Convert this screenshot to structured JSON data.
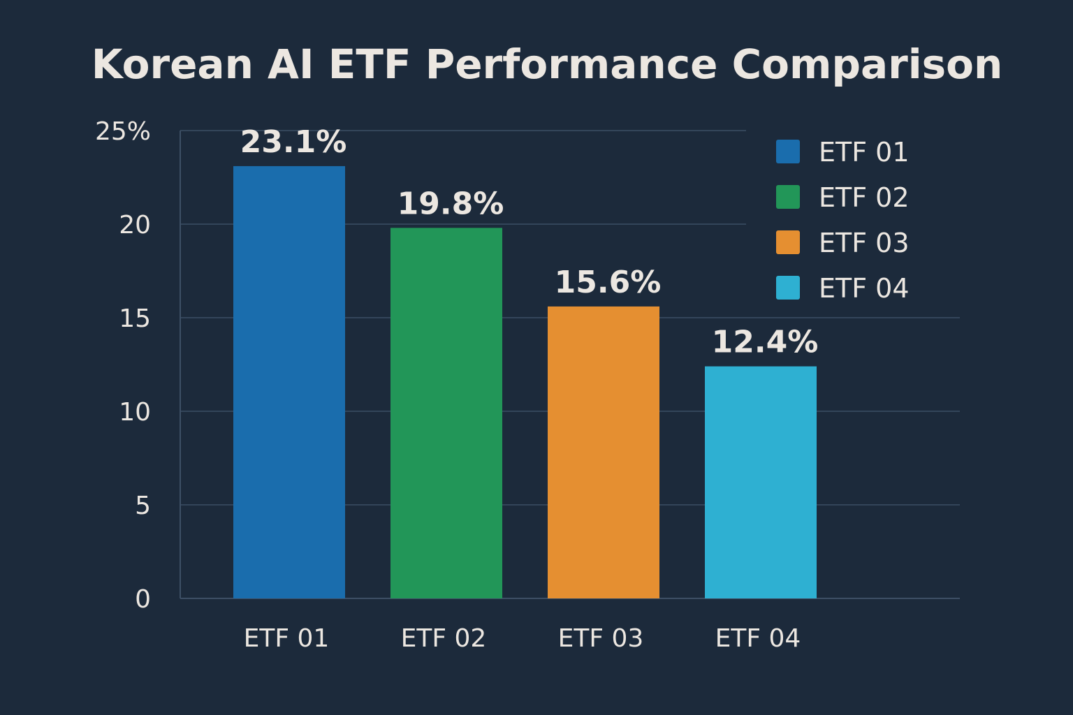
{
  "chart_data": {
    "type": "bar",
    "title": "Korean AI ETF Performance Comparison",
    "xlabel": "",
    "ylabel": "",
    "ylim": [
      0,
      25
    ],
    "y_ticks": [
      "0",
      "5",
      "10",
      "15",
      "20",
      "25%"
    ],
    "y_tick_values": [
      0,
      5,
      10,
      15,
      20,
      25
    ],
    "categories": [
      "ETF 01",
      "ETF 02",
      "ETF 03",
      "ETF 04"
    ],
    "values": [
      23.1,
      19.8,
      15.6,
      12.4
    ],
    "value_labels": [
      "23.1%",
      "19.8%",
      "15.6%",
      "12.4%"
    ],
    "colors": [
      "#1a6dad",
      "#229658",
      "#e58f31",
      "#2eb0d2"
    ],
    "grid": true,
    "legend": {
      "position": "top-right",
      "entries": [
        "ETF 01",
        "ETF 02",
        "ETF 03",
        "ETF 04"
      ]
    }
  }
}
